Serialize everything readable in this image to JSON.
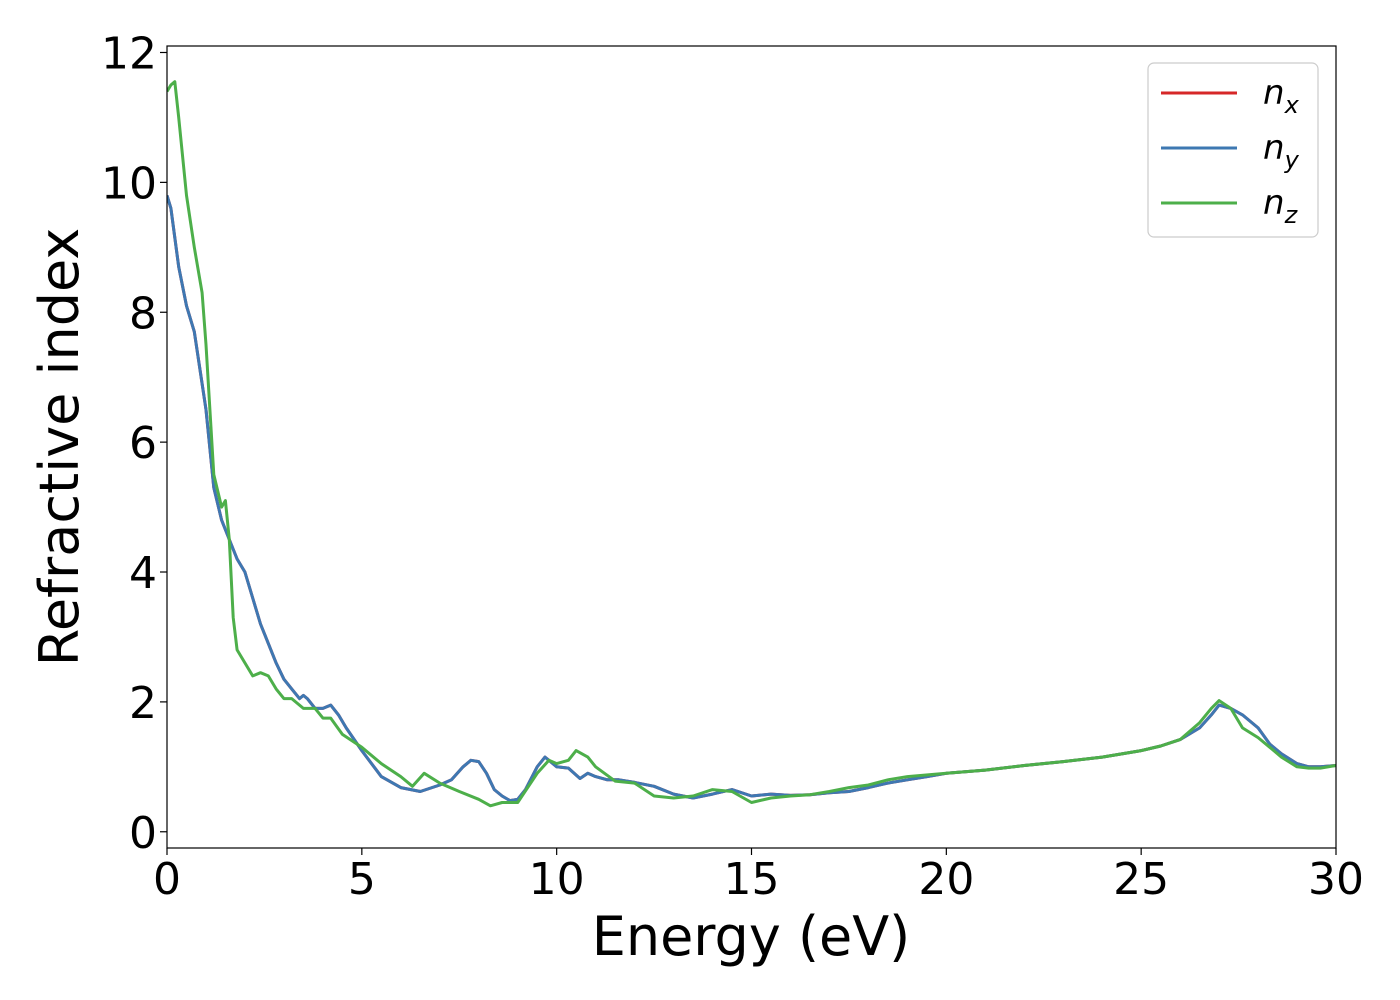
{
  "chart_data": {
    "type": "line",
    "title": "",
    "xlabel": "Energy (eV)",
    "ylabel": "Refractive index",
    "xlim": [
      0,
      30
    ],
    "ylim": [
      -0.25,
      12.1
    ],
    "xticks": [
      0,
      5,
      10,
      15,
      20,
      25,
      30
    ],
    "yticks": [
      0,
      2,
      4,
      6,
      8,
      10,
      12
    ],
    "grid": false,
    "legend_position": "top-right",
    "series": [
      {
        "name": "n_x",
        "label_base": "n",
        "label_sub": "x",
        "color": "#d62728",
        "x": [
          0,
          0.1,
          0.3,
          0.5,
          0.7,
          0.9,
          1.0,
          1.2,
          1.4,
          1.6,
          1.8,
          2.0,
          2.2,
          2.4,
          2.6,
          2.8,
          3.0,
          3.2,
          3.4,
          3.5,
          3.6,
          3.8,
          4.0,
          4.2,
          4.4,
          4.6,
          5.0,
          5.5,
          6.0,
          6.5,
          7.0,
          7.3,
          7.6,
          7.8,
          8.0,
          8.2,
          8.4,
          8.6,
          8.8,
          9.0,
          9.2,
          9.5,
          9.7,
          9.8,
          10.0,
          10.3,
          10.6,
          10.8,
          11.0,
          11.3,
          11.6,
          12.0,
          12.5,
          13.0,
          13.5,
          14.0,
          14.5,
          15.0,
          15.5,
          16.0,
          16.5,
          17.0,
          17.5,
          18.0,
          18.5,
          19.0,
          19.5,
          20.0,
          21.0,
          22.0,
          23.0,
          24.0,
          25.0,
          25.5,
          26.0,
          26.5,
          26.8,
          27.0,
          27.3,
          27.6,
          28.0,
          28.3,
          28.6,
          29.0,
          29.3,
          29.6,
          30.0
        ],
        "values": [
          9.8,
          9.6,
          8.7,
          8.1,
          7.7,
          6.9,
          6.5,
          5.3,
          4.8,
          4.5,
          4.2,
          4.0,
          3.6,
          3.2,
          2.9,
          2.6,
          2.35,
          2.2,
          2.05,
          2.1,
          2.05,
          1.9,
          1.9,
          1.95,
          1.8,
          1.6,
          1.25,
          0.85,
          0.68,
          0.62,
          0.72,
          0.8,
          1.0,
          1.1,
          1.08,
          0.9,
          0.65,
          0.55,
          0.48,
          0.5,
          0.65,
          1.0,
          1.15,
          1.1,
          1.0,
          0.98,
          0.82,
          0.9,
          0.85,
          0.8,
          0.8,
          0.76,
          0.7,
          0.58,
          0.52,
          0.58,
          0.65,
          0.55,
          0.58,
          0.56,
          0.57,
          0.6,
          0.62,
          0.68,
          0.75,
          0.8,
          0.85,
          0.9,
          0.95,
          1.02,
          1.08,
          1.15,
          1.25,
          1.32,
          1.42,
          1.6,
          1.8,
          1.95,
          1.9,
          1.8,
          1.6,
          1.35,
          1.2,
          1.05,
          1.0,
          1.0,
          1.02
        ]
      },
      {
        "name": "n_y",
        "label_base": "n",
        "label_sub": "y",
        "color": "#3e78b2",
        "x": [
          0,
          0.1,
          0.3,
          0.5,
          0.7,
          0.9,
          1.0,
          1.2,
          1.4,
          1.6,
          1.8,
          2.0,
          2.2,
          2.4,
          2.6,
          2.8,
          3.0,
          3.2,
          3.4,
          3.5,
          3.6,
          3.8,
          4.0,
          4.2,
          4.4,
          4.6,
          5.0,
          5.5,
          6.0,
          6.5,
          7.0,
          7.3,
          7.6,
          7.8,
          8.0,
          8.2,
          8.4,
          8.6,
          8.8,
          9.0,
          9.2,
          9.5,
          9.7,
          9.8,
          10.0,
          10.3,
          10.6,
          10.8,
          11.0,
          11.3,
          11.6,
          12.0,
          12.5,
          13.0,
          13.5,
          14.0,
          14.5,
          15.0,
          15.5,
          16.0,
          16.5,
          17.0,
          17.5,
          18.0,
          18.5,
          19.0,
          19.5,
          20.0,
          21.0,
          22.0,
          23.0,
          24.0,
          25.0,
          25.5,
          26.0,
          26.5,
          26.8,
          27.0,
          27.3,
          27.6,
          28.0,
          28.3,
          28.6,
          29.0,
          29.3,
          29.6,
          30.0
        ],
        "values": [
          9.8,
          9.6,
          8.7,
          8.1,
          7.7,
          6.9,
          6.5,
          5.3,
          4.8,
          4.5,
          4.2,
          4.0,
          3.6,
          3.2,
          2.9,
          2.6,
          2.35,
          2.2,
          2.05,
          2.1,
          2.05,
          1.9,
          1.9,
          1.95,
          1.8,
          1.6,
          1.25,
          0.85,
          0.68,
          0.62,
          0.72,
          0.8,
          1.0,
          1.1,
          1.08,
          0.9,
          0.65,
          0.55,
          0.48,
          0.5,
          0.65,
          1.0,
          1.15,
          1.1,
          1.0,
          0.98,
          0.82,
          0.9,
          0.85,
          0.8,
          0.8,
          0.76,
          0.7,
          0.58,
          0.52,
          0.58,
          0.65,
          0.55,
          0.58,
          0.56,
          0.57,
          0.6,
          0.62,
          0.68,
          0.75,
          0.8,
          0.85,
          0.9,
          0.95,
          1.02,
          1.08,
          1.15,
          1.25,
          1.32,
          1.42,
          1.6,
          1.8,
          1.95,
          1.9,
          1.8,
          1.6,
          1.35,
          1.2,
          1.05,
          1.0,
          1.0,
          1.02
        ]
      },
      {
        "name": "n_z",
        "label_base": "n",
        "label_sub": "z",
        "color": "#4daf4a",
        "x": [
          0,
          0.1,
          0.2,
          0.3,
          0.5,
          0.7,
          0.9,
          1.0,
          1.2,
          1.4,
          1.5,
          1.6,
          1.7,
          1.8,
          2.0,
          2.2,
          2.4,
          2.6,
          2.8,
          3.0,
          3.2,
          3.5,
          3.8,
          4.0,
          4.2,
          4.5,
          5.0,
          5.5,
          6.0,
          6.3,
          6.6,
          7.0,
          7.5,
          8.0,
          8.3,
          8.6,
          9.0,
          9.5,
          9.8,
          10.0,
          10.3,
          10.5,
          10.8,
          11.0,
          11.5,
          12.0,
          12.5,
          13.0,
          13.5,
          14.0,
          14.5,
          15.0,
          15.5,
          16.0,
          16.5,
          17.0,
          17.5,
          18.0,
          18.5,
          19.0,
          20.0,
          21.0,
          22.0,
          23.0,
          24.0,
          25.0,
          25.5,
          26.0,
          26.5,
          26.8,
          27.0,
          27.3,
          27.6,
          28.0,
          28.3,
          28.6,
          29.0,
          29.3,
          29.6,
          30.0
        ],
        "values": [
          11.4,
          11.5,
          11.55,
          11.0,
          9.8,
          9.0,
          8.3,
          7.5,
          5.5,
          5.0,
          5.1,
          4.5,
          3.3,
          2.8,
          2.6,
          2.4,
          2.45,
          2.4,
          2.2,
          2.05,
          2.05,
          1.9,
          1.9,
          1.75,
          1.75,
          1.5,
          1.3,
          1.05,
          0.85,
          0.7,
          0.9,
          0.75,
          0.62,
          0.5,
          0.4,
          0.45,
          0.45,
          0.9,
          1.1,
          1.05,
          1.1,
          1.25,
          1.15,
          1.0,
          0.78,
          0.75,
          0.55,
          0.52,
          0.55,
          0.65,
          0.62,
          0.45,
          0.52,
          0.55,
          0.57,
          0.62,
          0.68,
          0.72,
          0.8,
          0.85,
          0.9,
          0.95,
          1.02,
          1.08,
          1.15,
          1.25,
          1.32,
          1.42,
          1.68,
          1.9,
          2.02,
          1.9,
          1.6,
          1.45,
          1.3,
          1.15,
          1.0,
          0.98,
          0.98,
          1.02
        ]
      }
    ]
  }
}
